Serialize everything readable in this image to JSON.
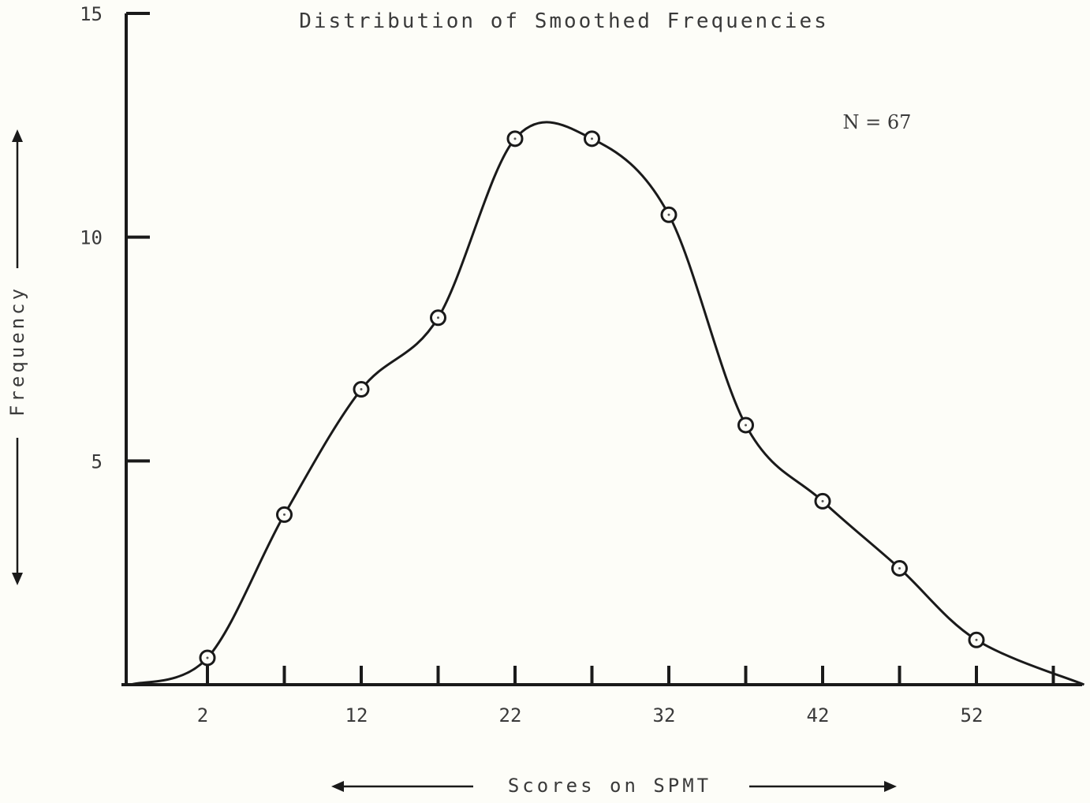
{
  "chart_data": {
    "type": "line",
    "title": "Distribution of Smoothed Frequencies",
    "xlabel": "Scores on SPMT",
    "ylabel": "Frequency",
    "annotation": "N = 67",
    "x_ticks": [
      2,
      12,
      22,
      32,
      42,
      52
    ],
    "y_ticks": [
      5,
      10,
      15
    ],
    "xlim": [
      -3,
      59
    ],
    "ylim": [
      0,
      15
    ],
    "curve_start": [
      -3,
      0
    ],
    "curve_end": [
      59,
      0
    ],
    "series": [
      {
        "points": [
          {
            "x": 2,
            "y": 0.6
          },
          {
            "x": 7,
            "y": 3.8
          },
          {
            "x": 12,
            "y": 6.6
          },
          {
            "x": 17,
            "y": 8.2
          },
          {
            "x": 22,
            "y": 12.2
          },
          {
            "x": 27,
            "y": 12.2
          },
          {
            "x": 32,
            "y": 10.5
          },
          {
            "x": 37,
            "y": 5.8
          },
          {
            "x": 42,
            "y": 4.1
          },
          {
            "x": 47,
            "y": 2.6
          },
          {
            "x": 52,
            "y": 1.0
          }
        ]
      }
    ],
    "grid": false,
    "legend": "none"
  }
}
